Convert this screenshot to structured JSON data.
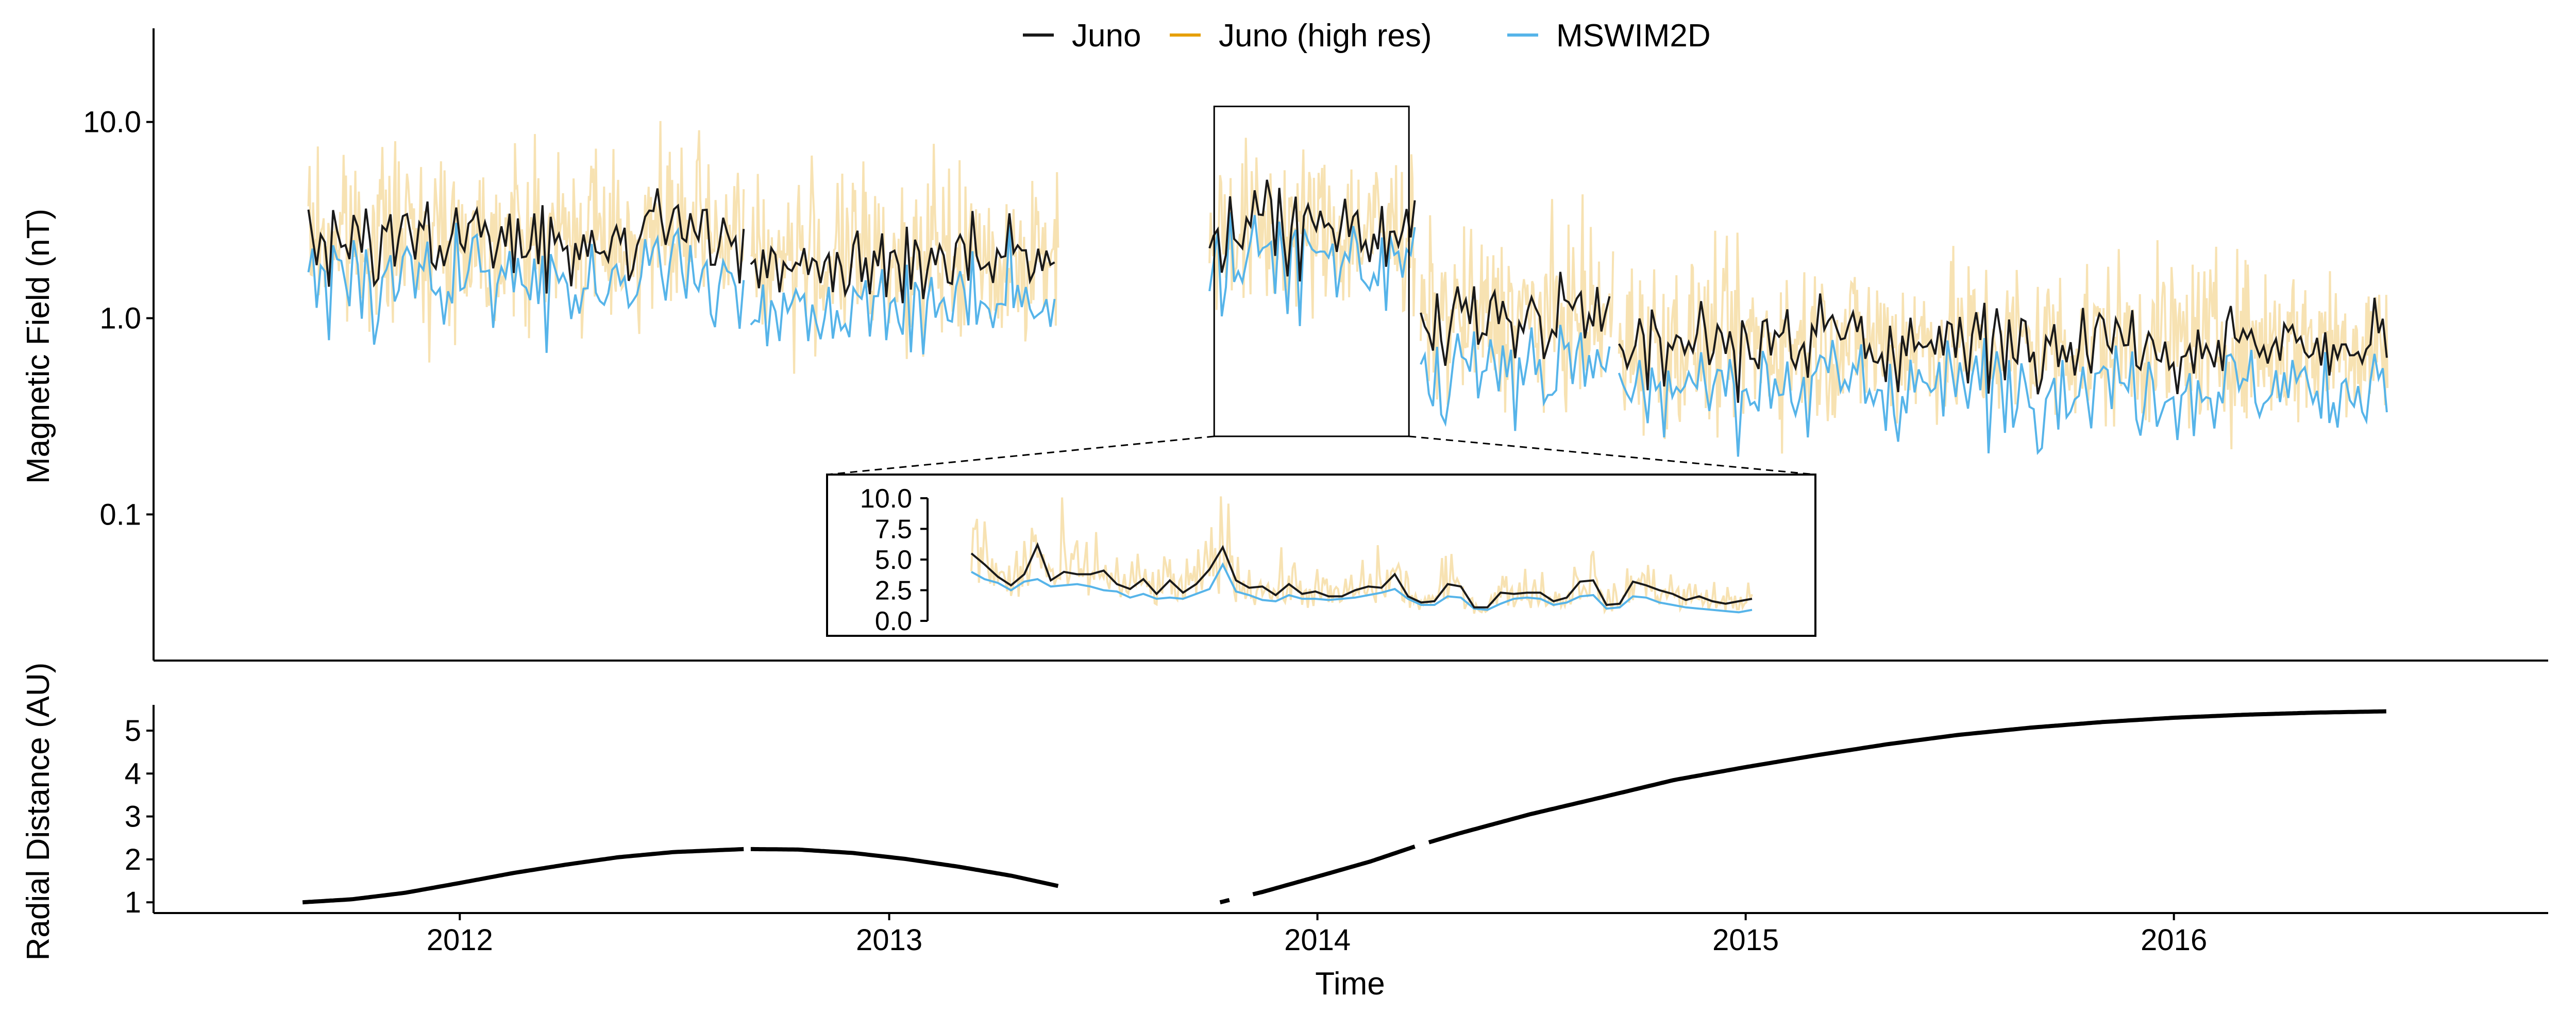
{
  "chart_data": [
    {
      "type": "line",
      "panel": "top",
      "ylabel": "Magnetic Field (nT)",
      "yscale": "log",
      "ylim": [
        0.018,
        30
      ],
      "xlim": [
        "2011-04-15",
        "2016-11-15"
      ],
      "ytick_labels": [
        "10.0",
        "1.0",
        "0.1"
      ],
      "ytick_values": [
        10,
        1,
        0.1
      ],
      "grid": false,
      "legend_placement": "top-center",
      "series": [
        {
          "name": "Juno",
          "color": "#1a1a1a"
        },
        {
          "name": "Juno (high res)",
          "color": "#E69F00"
        },
        {
          "name": "MSWIM2D",
          "color": "#56B4E9"
        }
      ],
      "segments": [
        {
          "start": "2011-08-25",
          "end": "2012-08-30",
          "juno_mean": 2.6,
          "mswim_ratio": 0.62
        },
        {
          "start": "2012-09-05",
          "end": "2013-05-25",
          "juno_mean": 2.0,
          "mswim_ratio": 0.6
        },
        {
          "start": "2013-10-01",
          "end": "2014-03-25",
          "juno_mean": 2.8,
          "mswim_ratio": 0.7
        },
        {
          "start": "2014-03-30",
          "end": "2014-09-10",
          "juno_mean": 1.0,
          "mswim_ratio": 0.55
        },
        {
          "start": "2014-09-15",
          "end": "2016-07-01",
          "juno_mean": 0.75,
          "mswim_ratio": 0.6
        }
      ],
      "zoom_box": {
        "start": "2013-10-05",
        "end": "2014-03-20",
        "ymin": 0.25,
        "ymax": 12
      }
    },
    {
      "type": "line",
      "panel": "inset",
      "ytick_labels": [
        "10.0",
        "7.5",
        "5.0",
        "2.5",
        "0.0"
      ],
      "ytick_values": [
        10,
        7.5,
        5,
        2.5,
        0
      ],
      "ylim": [
        0,
        10.5
      ],
      "juno": [
        5.5,
        4.6,
        3.6,
        2.9,
        3.8,
        6.2,
        3.3,
        4.0,
        3.8,
        3.8,
        4.1,
        3.0,
        2.6,
        3.4,
        2.2,
        3.3,
        2.3,
        3.0,
        4.2,
        6.0,
        3.3,
        2.7,
        2.8,
        2.1,
        3.0,
        2.2,
        2.4,
        2.0,
        2.0,
        2.5,
        2.8,
        2.7,
        3.8,
        2.0,
        1.5,
        1.6,
        3.0,
        2.8,
        1.1,
        1.1,
        2.3,
        2.2,
        2.3,
        2.3,
        1.6,
        1.9,
        3.2,
        3.3,
        1.3,
        1.4,
        3.2,
        2.9,
        2.5,
        2.2,
        1.7,
        2.0,
        1.6,
        1.4,
        1.6,
        1.8
      ],
      "mswim": [
        4.0,
        3.4,
        3.1,
        2.5,
        3.2,
        3.4,
        2.8,
        2.9,
        3.0,
        2.8,
        2.5,
        2.4,
        1.9,
        2.2,
        1.8,
        1.9,
        1.8,
        2.2,
        2.6,
        4.6,
        2.4,
        2.1,
        1.7,
        1.6,
        2.1,
        1.8,
        1.8,
        1.7,
        1.8,
        1.9,
        2.1,
        2.3,
        2.6,
        1.8,
        1.3,
        1.3,
        2.0,
        1.9,
        1.0,
        0.9,
        1.4,
        1.8,
        1.9,
        1.8,
        1.3,
        1.5,
        2.0,
        2.1,
        1.0,
        1.1,
        2.0,
        1.9,
        1.5,
        1.3,
        1.1,
        1.0,
        0.9,
        0.8,
        0.7,
        0.9
      ]
    },
    {
      "type": "line",
      "panel": "bottom",
      "xlabel": "Time",
      "ylabel": "Radial Distance (AU)",
      "ylim": [
        0.75,
        5.6
      ],
      "ytick_values": [
        1,
        2,
        3,
        4,
        5
      ],
      "ytick_labels": [
        "1",
        "2",
        "3",
        "4",
        "5"
      ],
      "xtick_values": [
        "2012-01-01",
        "2013-01-01",
        "2014-01-01",
        "2015-01-01",
        "2016-01-01"
      ],
      "xtick_labels": [
        "2012",
        "2013",
        "2014",
        "2015",
        "2016"
      ],
      "series": [
        {
          "color": "#000000"
        }
      ],
      "points": [
        [
          "2011-08-20",
          1.0
        ],
        [
          "2011-10-01",
          1.07
        ],
        [
          "2011-11-15",
          1.22
        ],
        [
          "2012-01-01",
          1.45
        ],
        [
          "2012-02-15",
          1.68
        ],
        [
          "2012-04-01",
          1.88
        ],
        [
          "2012-05-15",
          2.05
        ],
        [
          "2012-07-01",
          2.17
        ],
        [
          "2012-08-30",
          2.24
        ],
        [
          "2012-09-05",
          2.24
        ],
        [
          "2012-10-15",
          2.23
        ],
        [
          "2012-12-01",
          2.15
        ],
        [
          "2013-01-15",
          2.01
        ],
        [
          "2013-03-01",
          1.83
        ],
        [
          "2013-04-15",
          1.62
        ],
        [
          "2013-05-25",
          1.38
        ],
        [
          "2013-10-10",
          1.0
        ],
        [
          "2013-11-15",
          1.24
        ],
        [
          "2014-01-01",
          1.6
        ],
        [
          "2014-02-15",
          1.95
        ],
        [
          "2014-03-25",
          2.3
        ],
        [
          "2014-05-01",
          2.6
        ],
        [
          "2014-07-01",
          3.05
        ],
        [
          "2014-09-01",
          3.45
        ],
        [
          "2014-11-01",
          3.85
        ],
        [
          "2015-01-01",
          4.15
        ],
        [
          "2015-03-01",
          4.42
        ],
        [
          "2015-05-01",
          4.68
        ],
        [
          "2015-07-01",
          4.9
        ],
        [
          "2015-09-01",
          5.07
        ],
        [
          "2015-11-01",
          5.2
        ],
        [
          "2016-01-01",
          5.3
        ],
        [
          "2016-03-01",
          5.37
        ],
        [
          "2016-05-01",
          5.42
        ],
        [
          "2016-07-01",
          5.45
        ]
      ],
      "gaps": [
        [
          "2012-08-31",
          "2012-09-04"
        ],
        [
          "2013-05-26",
          "2013-10-09"
        ],
        [
          "2013-10-20",
          "2013-11-05"
        ],
        [
          "2014-03-26",
          "2014-04-05"
        ]
      ]
    }
  ]
}
